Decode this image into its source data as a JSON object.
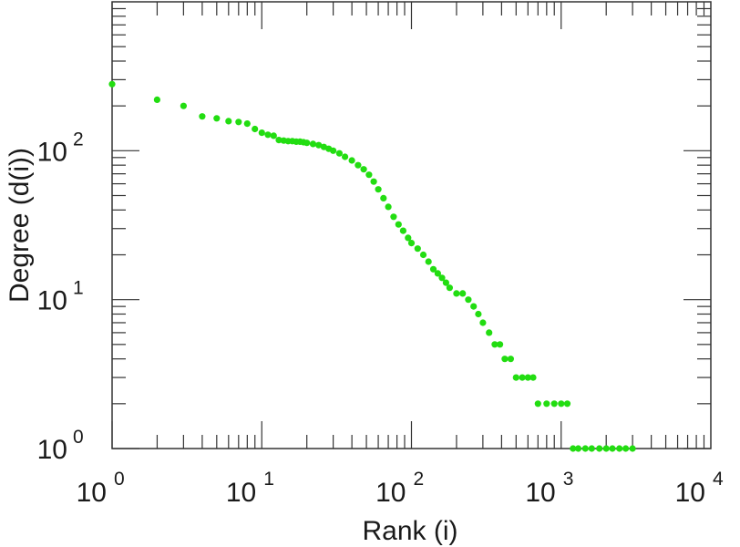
{
  "chart_data": {
    "type": "scatter",
    "title": "",
    "xlabel": "Rank (i)",
    "ylabel": "Degree (d(i))",
    "x_scale": "log",
    "y_scale": "log",
    "xlim": [
      1,
      10000
    ],
    "ylim": [
      1,
      1000
    ],
    "grid": false,
    "marker_color": "#22dd11",
    "x_ticks": [
      {
        "base": "10",
        "exp": "0"
      },
      {
        "base": "10",
        "exp": "1"
      },
      {
        "base": "10",
        "exp": "2"
      },
      {
        "base": "10",
        "exp": "3"
      },
      {
        "base": "10",
        "exp": "4"
      }
    ],
    "y_ticks": [
      {
        "base": "10",
        "exp": "0"
      },
      {
        "base": "10",
        "exp": "1"
      },
      {
        "base": "10",
        "exp": "2"
      }
    ],
    "series": [
      {
        "points": [
          [
            1,
            280
          ],
          [
            2,
            220
          ],
          [
            3,
            200
          ],
          [
            4,
            170
          ],
          [
            5,
            165
          ],
          [
            6,
            158
          ],
          [
            7,
            156
          ],
          [
            8,
            152
          ],
          [
            9,
            140
          ],
          [
            10,
            132
          ],
          [
            11,
            128
          ],
          [
            12,
            126
          ],
          [
            13,
            118
          ],
          [
            14,
            117
          ],
          [
            15,
            116
          ],
          [
            16,
            116
          ],
          [
            17,
            115
          ],
          [
            18,
            115
          ],
          [
            19,
            114
          ],
          [
            20,
            113
          ],
          [
            22,
            111
          ],
          [
            24,
            109
          ],
          [
            26,
            106
          ],
          [
            28,
            103
          ],
          [
            30,
            100
          ],
          [
            33,
            96
          ],
          [
            36,
            91
          ],
          [
            40,
            86
          ],
          [
            44,
            80
          ],
          [
            48,
            75
          ],
          [
            52,
            69
          ],
          [
            56,
            62
          ],
          [
            60,
            55
          ],
          [
            65,
            48
          ],
          [
            70,
            42
          ],
          [
            76,
            36
          ],
          [
            82,
            32
          ],
          [
            88,
            29
          ],
          [
            95,
            26
          ],
          [
            100,
            24
          ],
          [
            110,
            22
          ],
          [
            120,
            20
          ],
          [
            130,
            18
          ],
          [
            140,
            16
          ],
          [
            150,
            15
          ],
          [
            160,
            14
          ],
          [
            170,
            13
          ],
          [
            180,
            12
          ],
          [
            200,
            11
          ],
          [
            220,
            11
          ],
          [
            240,
            10
          ],
          [
            260,
            9
          ],
          [
            280,
            8
          ],
          [
            300,
            7
          ],
          [
            330,
            6
          ],
          [
            360,
            5
          ],
          [
            390,
            5
          ],
          [
            420,
            4
          ],
          [
            460,
            4
          ],
          [
            500,
            3
          ],
          [
            550,
            3
          ],
          [
            600,
            3
          ],
          [
            650,
            3
          ],
          [
            700,
            2
          ],
          [
            800,
            2
          ],
          [
            900,
            2
          ],
          [
            1000,
            2
          ],
          [
            1100,
            2
          ],
          [
            1200,
            1
          ],
          [
            1300,
            1
          ],
          [
            1450,
            1
          ],
          [
            1600,
            1
          ],
          [
            1800,
            1
          ],
          [
            2000,
            1
          ],
          [
            2200,
            1
          ],
          [
            2450,
            1
          ],
          [
            2700,
            1
          ],
          [
            3000,
            1
          ]
        ]
      }
    ]
  }
}
